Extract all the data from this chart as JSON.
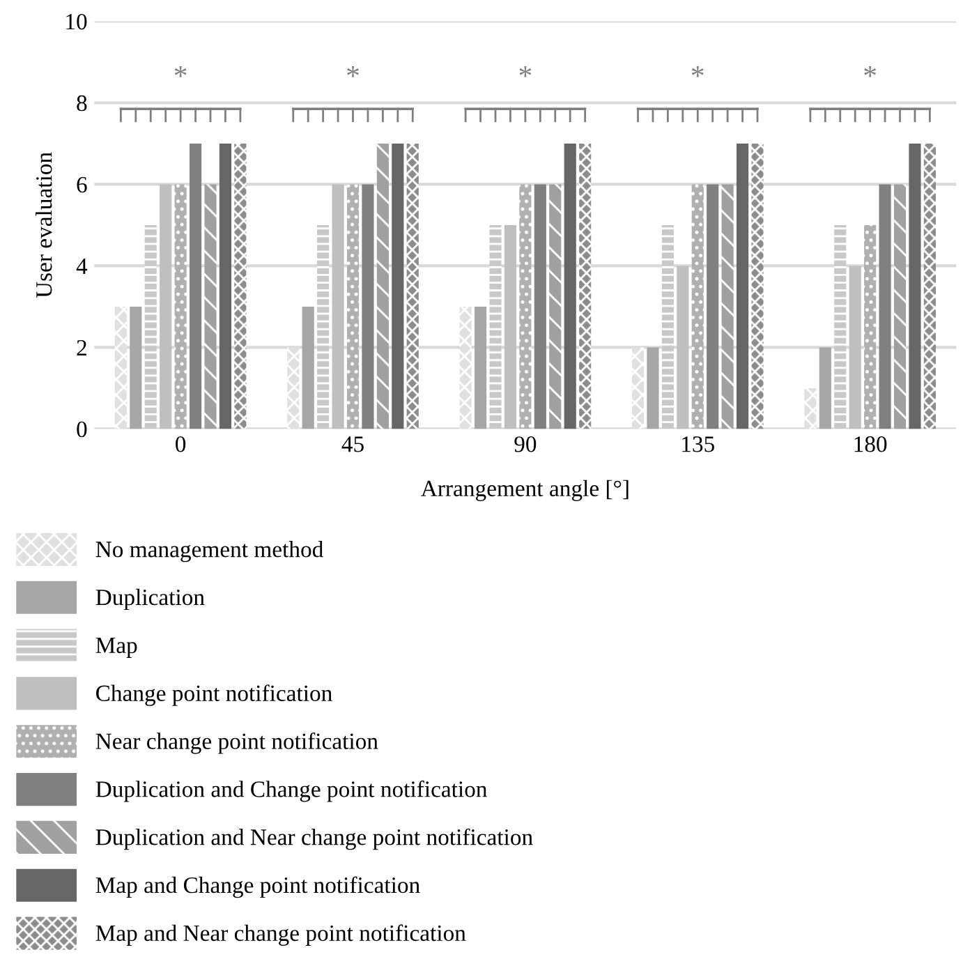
{
  "chart_data": {
    "type": "bar",
    "xlabel": "Arrangement angle [°]",
    "ylabel": "User evaluation",
    "categories": [
      "0",
      "45",
      "90",
      "135",
      "180"
    ],
    "series": [
      {
        "name": "No management method",
        "color": "#e0e0e0",
        "values": [
          3,
          2,
          3,
          2,
          1
        ]
      },
      {
        "name": "Duplication",
        "color": "#a6a6a6",
        "values": [
          3,
          3,
          3,
          2,
          2
        ]
      },
      {
        "name": "Map",
        "color": "#c8c8c8",
        "values": [
          5,
          5,
          5,
          5,
          5
        ]
      },
      {
        "name": "Change point notification",
        "color": "#bfbfbf",
        "values": [
          6,
          6,
          5,
          4,
          4
        ]
      },
      {
        "name": "Near change point notification",
        "color": "#b0b0b0",
        "values": [
          6,
          6,
          6,
          6,
          5
        ]
      },
      {
        "name": "Duplication and Change point notification",
        "color": "#808080",
        "values": [
          7,
          6,
          6,
          6,
          6
        ]
      },
      {
        "name": "Duplication and Near change point notification",
        "color": "#a0a0a0",
        "values": [
          6,
          7,
          6,
          6,
          6
        ]
      },
      {
        "name": "Map and Change point notification",
        "color": "#666666",
        "values": [
          7,
          7,
          7,
          7,
          7
        ]
      },
      {
        "name": "Map and Near change point notification",
        "color": "#8c8c8c",
        "values": [
          7,
          7,
          7,
          7,
          7
        ]
      }
    ],
    "ylim": [
      0,
      10
    ],
    "yticks": [
      0,
      2,
      4,
      6,
      8,
      10
    ],
    "grid": "y",
    "legend": "bottom",
    "annotations": [
      "*",
      "*",
      "*",
      "*",
      "*"
    ]
  }
}
